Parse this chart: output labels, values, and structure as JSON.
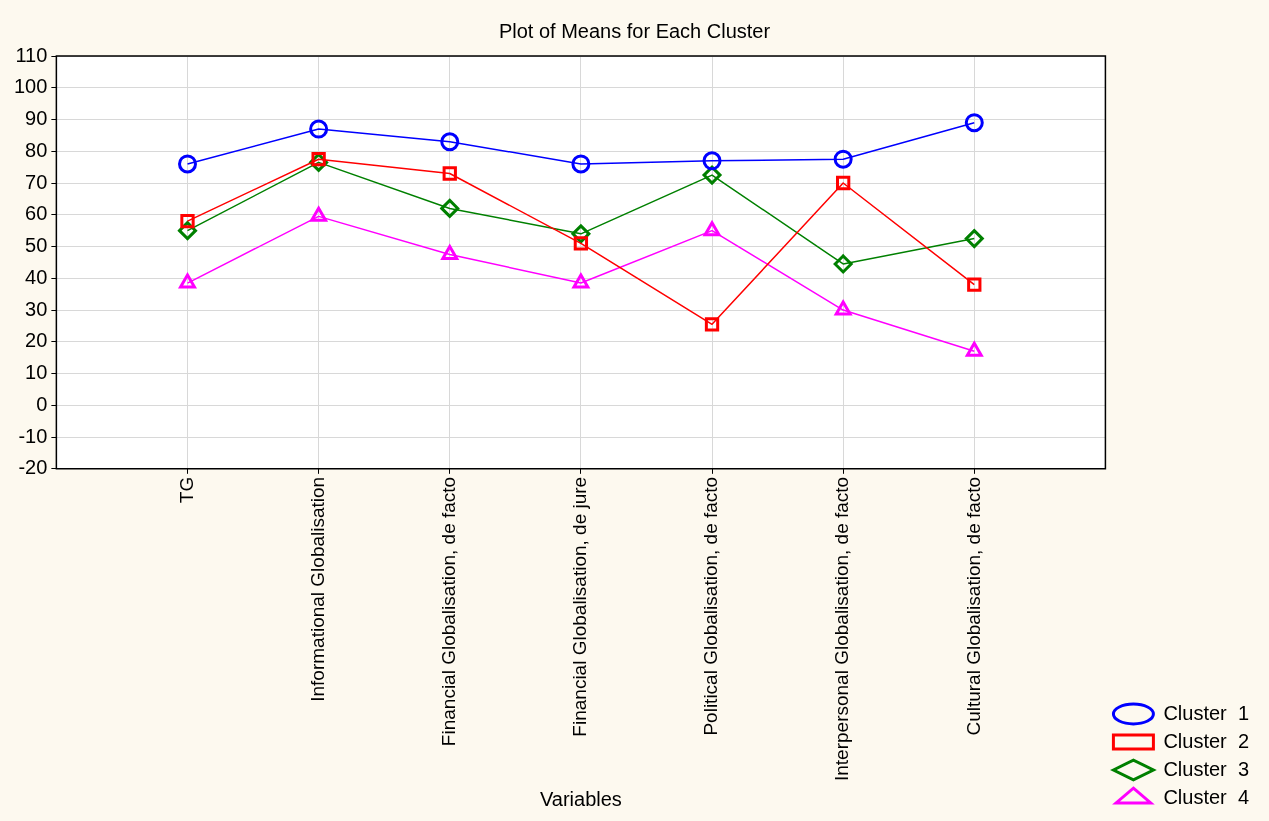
{
  "chart_data": {
    "type": "line",
    "title": "Plot of Means for Each Cluster",
    "xlabel": "Variables",
    "categories": [
      "TG",
      "Informational Globalisation",
      "Financial Globalisation, de facto",
      "Financial Globalisation, de jure",
      "Political Globalisation, de facto",
      "Interpersonal Globalisation, de facto",
      "Cultural Globalisation, de facto"
    ],
    "series": [
      {
        "name": "Cluster  1",
        "color": "#0000ff",
        "marker": "circle",
        "values": [
          76,
          87,
          83,
          76,
          77,
          77.5,
          89
        ]
      },
      {
        "name": "Cluster  2",
        "color": "#ff0000",
        "marker": "square",
        "values": [
          58,
          77.5,
          73,
          51,
          25.5,
          70,
          38
        ]
      },
      {
        "name": "Cluster  3",
        "color": "#008000",
        "marker": "diamond",
        "values": [
          55,
          76.5,
          62,
          54,
          72.5,
          44.5,
          52.5
        ]
      },
      {
        "name": "Cluster  4",
        "color": "#ff00ff",
        "marker": "triangle",
        "values": [
          38.5,
          59.5,
          47.5,
          38.5,
          55,
          30,
          17
        ]
      }
    ],
    "ylim": [
      -20,
      110
    ],
    "yticks": [
      -20,
      -10,
      0,
      10,
      20,
      30,
      40,
      50,
      60,
      70,
      80,
      90,
      100,
      110
    ],
    "grid": true,
    "legend": "bottom right",
    "line_style": "solid"
  }
}
